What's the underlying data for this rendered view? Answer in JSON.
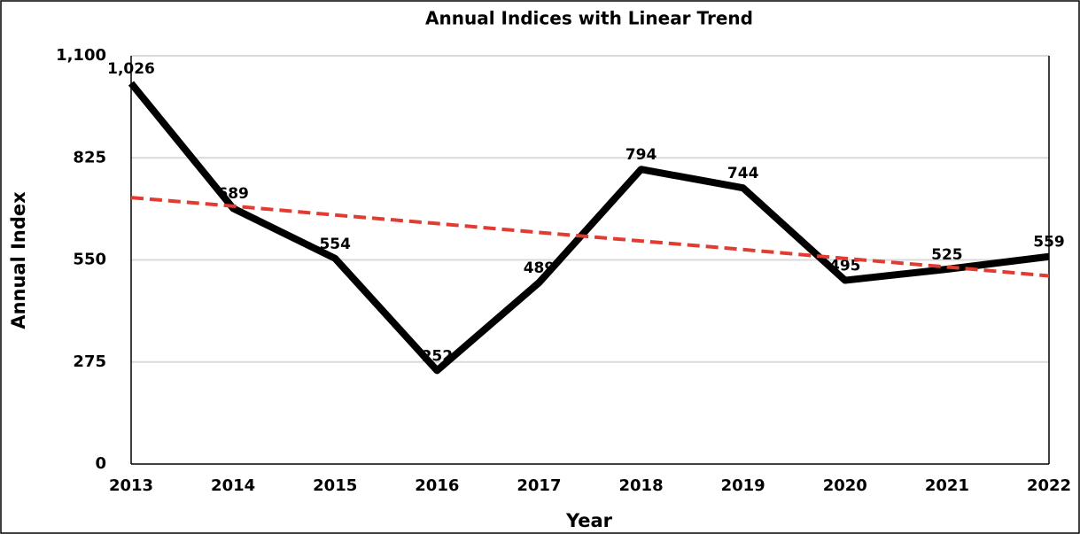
{
  "chart_data": {
    "type": "line",
    "title": "Annual Indices with Linear Trend",
    "x_label": "Year",
    "y_label": "Annual Index",
    "categories": [
      "2013",
      "2014",
      "2015",
      "2016",
      "2017",
      "2018",
      "2019",
      "2020",
      "2021",
      "2022"
    ],
    "series": [
      {
        "color": "#000000",
        "values": [
          1026,
          689,
          554,
          252,
          489,
          794,
          744,
          495,
          525,
          559
        ],
        "value_labels": [
          "1,026",
          "689",
          "554",
          "252",
          "489",
          "794",
          "744",
          "495",
          "525",
          "559"
        ]
      }
    ],
    "trend": {
      "color": "#e03c31",
      "values": [
        718,
        695,
        671,
        648,
        624,
        601,
        578,
        554,
        531,
        507
      ]
    },
    "ylim": [
      0,
      1100
    ],
    "yticks": [
      0,
      275,
      550,
      825,
      {
        "value": 1100,
        "label": "1,100"
      }
    ],
    "grid": true
  }
}
